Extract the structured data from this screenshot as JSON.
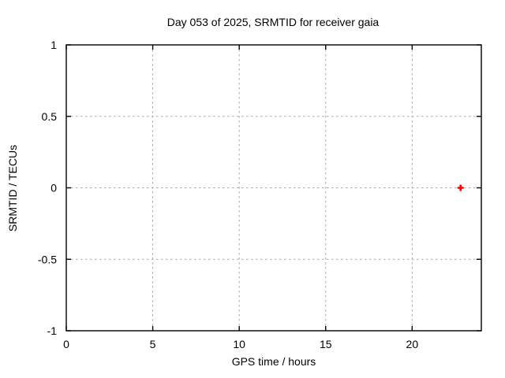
{
  "chart_data": {
    "type": "scatter",
    "title": "Day 053 of 2025, SRMTID for receiver gaia",
    "xlabel": "GPS time / hours",
    "ylabel": "SRMTID / TECUs",
    "xlim": [
      0,
      24
    ],
    "ylim": [
      -1,
      1
    ],
    "xticks": [
      0,
      5,
      10,
      15,
      20
    ],
    "yticks": [
      -1,
      -0.5,
      0,
      0.5,
      1
    ],
    "grid": true,
    "legend": "none",
    "series": [
      {
        "name": "SRMTID",
        "marker": "plus",
        "color": "#ff0000",
        "points": [
          {
            "x": 22.8,
            "y": 0.0
          }
        ]
      }
    ],
    "colors": {
      "background": "#ffffff",
      "border": "#000000",
      "grid": "#a8a8a8",
      "text": "#000000"
    }
  }
}
